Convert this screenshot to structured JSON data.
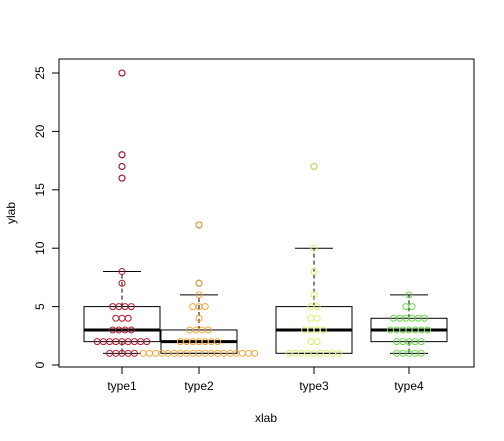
{
  "chart_data": {
    "type": "boxplot",
    "title": "",
    "xlabel": "xlab",
    "ylabel": "ylab",
    "ylim": [
      0,
      25
    ],
    "yticks": [
      0,
      5,
      10,
      15,
      20,
      25
    ],
    "categories": [
      "type1",
      "type2",
      "type3",
      "type4"
    ],
    "colors": {
      "type1": "#b2182b",
      "type2": "#f4a636",
      "type3": "#d9ef6b",
      "type4": "#66d84a"
    },
    "boxes": [
      {
        "category": "type1",
        "min": 1,
        "q1": 2,
        "median": 3,
        "q3": 5,
        "max": 8,
        "outliers": [
          16,
          17,
          18,
          25
        ]
      },
      {
        "category": "type2",
        "min": 1,
        "q1": 1,
        "median": 2,
        "q3": 3,
        "max": 6,
        "outliers": [
          7,
          12
        ]
      },
      {
        "category": "type3",
        "min": 1,
        "q1": 1,
        "median": 3,
        "q3": 5,
        "max": 10,
        "outliers": [
          17
        ]
      },
      {
        "category": "type4",
        "min": 1,
        "q1": 2,
        "median": 3,
        "q3": 4,
        "max": 6,
        "outliers": []
      }
    ],
    "points": {
      "type1": [
        1,
        1,
        1,
        1,
        1,
        2,
        2,
        2,
        2,
        2,
        2,
        2,
        2,
        2,
        3,
        3,
        3,
        3,
        4,
        4,
        4,
        5,
        5,
        5,
        5,
        7,
        8,
        16,
        17,
        18,
        25
      ],
      "type2": [
        1,
        1,
        1,
        1,
        1,
        1,
        1,
        1,
        1,
        1,
        1,
        1,
        1,
        1,
        1,
        1,
        1,
        1,
        1,
        2,
        2,
        2,
        2,
        2,
        2,
        2,
        3,
        3,
        3,
        3,
        4,
        5,
        5,
        5,
        6,
        7,
        12
      ],
      "type3": [
        1,
        1,
        1,
        1,
        1,
        1,
        1,
        1,
        1,
        2,
        2,
        3,
        3,
        3,
        3,
        4,
        4,
        5,
        5,
        6,
        8,
        10,
        17
      ],
      "type4": [
        1,
        1,
        1,
        1,
        1,
        2,
        2,
        2,
        2,
        2,
        3,
        3,
        3,
        3,
        3,
        3,
        3,
        4,
        4,
        4,
        4,
        4,
        4,
        5,
        5,
        6
      ]
    }
  }
}
